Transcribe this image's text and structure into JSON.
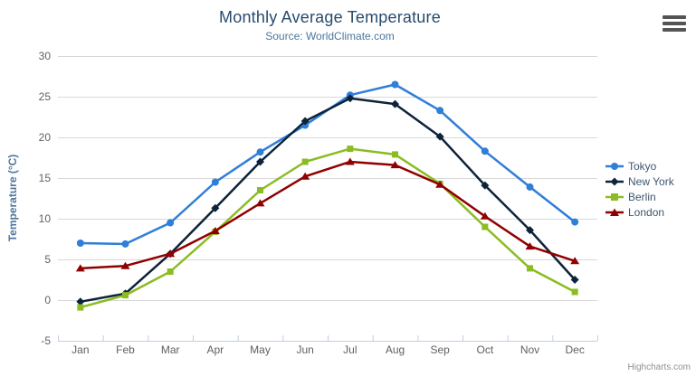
{
  "title": "Monthly Average Temperature",
  "subtitle": "Source: WorldClimate.com",
  "credits": "Highcharts.com",
  "export_menu": {
    "icon": "hamburger-icon"
  },
  "theme": {
    "background": "#ffffff",
    "title_color": "#274b6d",
    "subtitle_color": "#4d759e",
    "axis_title_color": "#4d759e",
    "axis_label_color": "#606060",
    "gridline_color": "#d8d8d8",
    "axis_line_color": "#c0d0e0",
    "legend_text_color": "#3e576f",
    "credits_color": "#909090",
    "burger_color": "#545454"
  },
  "chart_data": {
    "type": "line",
    "title": "Monthly Average Temperature",
    "subtitle": "Source: WorldClimate.com",
    "categories": [
      "Jan",
      "Feb",
      "Mar",
      "Apr",
      "May",
      "Jun",
      "Jul",
      "Aug",
      "Sep",
      "Oct",
      "Nov",
      "Dec"
    ],
    "series": [
      {
        "name": "Tokyo",
        "color": "#2f7ed8",
        "marker": "circle",
        "values": [
          7.0,
          6.9,
          9.5,
          14.5,
          18.2,
          21.5,
          25.2,
          26.5,
          23.3,
          18.3,
          13.9,
          9.6
        ]
      },
      {
        "name": "New York",
        "color": "#0d233a",
        "marker": "diamond",
        "values": [
          -0.2,
          0.8,
          5.7,
          11.3,
          17.0,
          22.0,
          24.8,
          24.1,
          20.1,
          14.1,
          8.6,
          2.5
        ]
      },
      {
        "name": "Berlin",
        "color": "#8bbc21",
        "marker": "square",
        "values": [
          -0.9,
          0.6,
          3.5,
          8.4,
          13.5,
          17.0,
          18.6,
          17.9,
          14.3,
          9.0,
          3.9,
          1.0
        ]
      },
      {
        "name": "London",
        "color": "#910000",
        "marker": "triangle",
        "values": [
          3.9,
          4.2,
          5.7,
          8.5,
          11.9,
          15.2,
          17.0,
          16.6,
          14.2,
          10.3,
          6.6,
          4.8
        ]
      }
    ],
    "xlabel": "",
    "ylabel": "Temperature (°C)",
    "ylim": [
      -5,
      30
    ],
    "yticks": [
      -5,
      0,
      5,
      10,
      15,
      20,
      25,
      30
    ],
    "grid": true,
    "legend_position": "right"
  }
}
